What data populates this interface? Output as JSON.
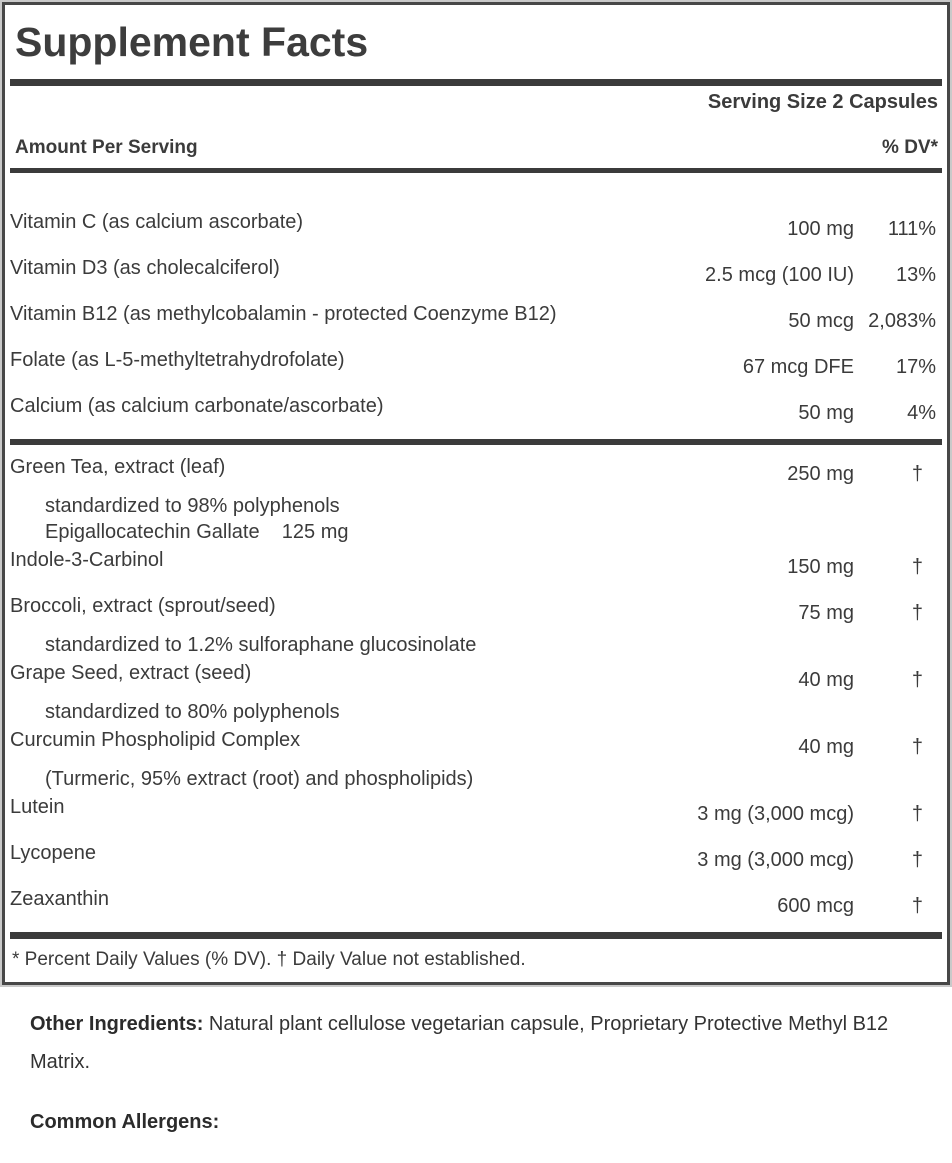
{
  "label": {
    "title": "Supplement Facts",
    "serving_size": "Serving Size 2 Capsules",
    "columns": {
      "amount": "Amount Per Serving",
      "dv": "% DV*"
    },
    "nutrient_rows": [
      {
        "name": "Vitamin C (as calcium ascorbate)",
        "amount": "100 mg",
        "dv": "111%"
      },
      {
        "name": "Vitamin D3 (as cholecalciferol)",
        "amount": "2.5 mcg (100 IU)",
        "dv": "13%"
      },
      {
        "name": "Vitamin B12 (as methylcobalamin - protected Coenzyme B12)",
        "amount": "50 mcg",
        "dv": "2,083%"
      },
      {
        "name": "Folate (as L-5-methyltetrahydrofolate)",
        "amount": "67 mcg DFE",
        "dv": "17%"
      },
      {
        "name": "Calcium (as calcium carbonate/ascorbate)",
        "amount": "50 mg",
        "dv": "4%"
      }
    ],
    "botanical_rows": [
      {
        "name": "Green Tea, extract (leaf)",
        "amount": "250 mg",
        "dv": "†",
        "sublines": [
          "standardized to 98% polyphenols",
          "Epigallocatechin Gallate    125 mg"
        ]
      },
      {
        "name": "Indole-3-Carbinol",
        "amount": "150 mg",
        "dv": "†"
      },
      {
        "name": "Broccoli, extract (sprout/seed)",
        "amount": "75 mg",
        "dv": "†",
        "sublines": [
          "standardized to 1.2% sulforaphane glucosinolate"
        ]
      },
      {
        "name": "Grape Seed, extract (seed)",
        "amount": "40 mg",
        "dv": "†",
        "sublines": [
          "standardized to 80% polyphenols"
        ]
      },
      {
        "name": "Curcumin Phospholipid Complex",
        "amount": "40 mg",
        "dv": "†",
        "sublines": [
          "(Turmeric, 95% extract (root) and phospholipids)"
        ]
      },
      {
        "name": "Lutein",
        "amount": "3 mg (3,000 mcg)",
        "dv": "†"
      },
      {
        "name": "Lycopene",
        "amount": "3 mg (3,000 mcg)",
        "dv": "†"
      },
      {
        "name": "Zeaxanthin",
        "amount": "600 mcg",
        "dv": "†"
      }
    ],
    "footnote": "* Percent Daily Values (% DV). † Daily Value not established."
  },
  "below": {
    "other_ingredients_label": "Other Ingredients:",
    "other_ingredients_text": " Natural plant cellulose vegetarian capsule, Proprietary Protective Methyl B12 Matrix.",
    "allergens_label": "Common Allergens:"
  },
  "colors": {
    "ink": "#3b3b3b",
    "bar": "#3b3b3b",
    "border": "#474747",
    "outer_edge": "#c9c9c9"
  }
}
